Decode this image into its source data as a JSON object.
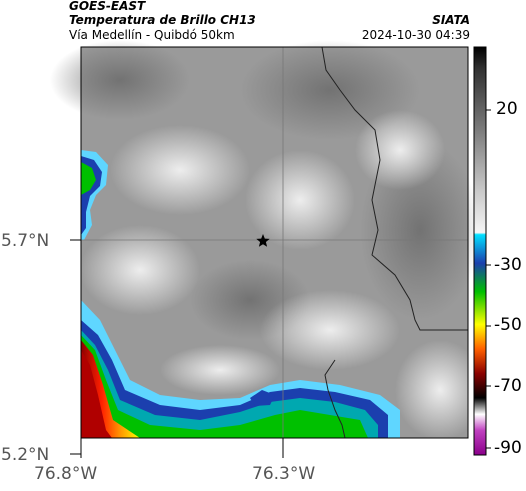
{
  "header": {
    "satellite": "GOES-EAST",
    "product": "Temperatura de Brillo CH13",
    "region": "Vía Medellín - Quibdó 50km",
    "source": "SIATA",
    "datetime": "2024-10-30 04:39"
  },
  "map": {
    "y_axis": {
      "ticks": [
        "5.7°N",
        "5.2°N"
      ]
    },
    "x_axis": {
      "ticks": [
        "76.8°W",
        "76.3°W"
      ]
    },
    "marker": {
      "label": "star",
      "icon": "star-icon"
    }
  },
  "colorbar": {
    "ticks": [
      "20",
      "-30",
      "-50",
      "-70",
      "-90"
    ],
    "stops": [
      "#ffffff",
      "#5fd6ff",
      "#1b3fae",
      "#00c000",
      "#ffff00",
      "#ff6000",
      "#8b0000",
      "#000000",
      "#ffffff",
      "#a000a0"
    ]
  }
}
